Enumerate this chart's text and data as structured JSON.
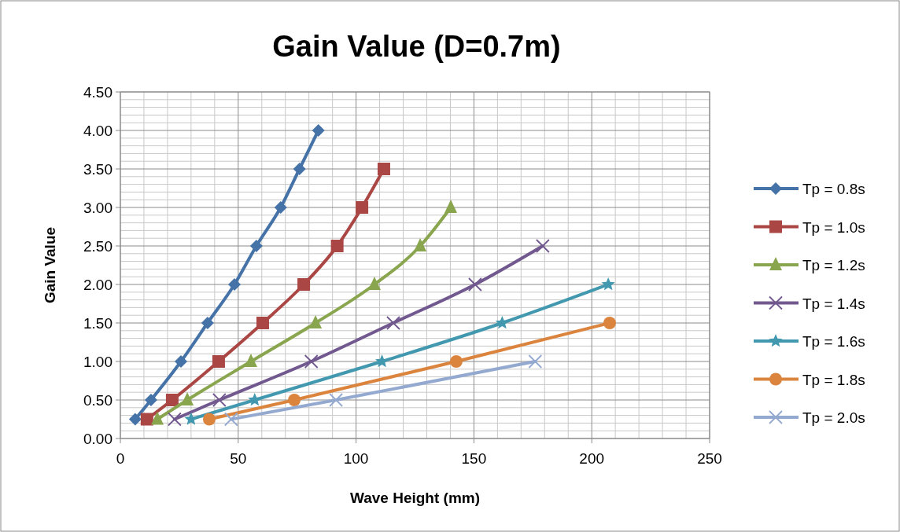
{
  "chart_data": {
    "type": "line",
    "title": "Gain Value (D=0.7m)",
    "xlabel": "Wave Height (mm)",
    "ylabel": "Gain Value",
    "xlim": [
      0,
      250
    ],
    "xticks": [
      0,
      50,
      100,
      150,
      200,
      250
    ],
    "ylim": [
      0,
      4.5
    ],
    "yticks": [
      {
        "value": 0,
        "label": "0.00"
      },
      {
        "value": 0.5,
        "label": "0.50"
      },
      {
        "value": 1,
        "label": "1.00"
      },
      {
        "value": 1.5,
        "label": "1.50"
      },
      {
        "value": 2,
        "label": "2.00"
      },
      {
        "value": 2.5,
        "label": "2.50"
      },
      {
        "value": 3,
        "label": "3.00"
      },
      {
        "value": 3.5,
        "label": "3.50"
      },
      {
        "value": 4,
        "label": "4.00"
      },
      {
        "value": 4.5,
        "label": "4.50"
      }
    ],
    "grid": true,
    "legend": "right",
    "series": [
      {
        "name": "Tp = 0.8s",
        "color": "#4572a7",
        "marker": "diamond",
        "x": [
          6.3,
          13,
          25.7,
          37,
          48.4,
          57.7,
          68,
          76,
          84
        ],
        "values": [
          0.25,
          0.5,
          1,
          1.5,
          2,
          2.5,
          3,
          3.5,
          4
        ]
      },
      {
        "name": "Tp = 1.0s",
        "color": "#aa4643",
        "marker": "square",
        "x": [
          11.3,
          22,
          41.7,
          60.4,
          77.8,
          92,
          102.5,
          111.8
        ],
        "values": [
          0.25,
          0.5,
          1,
          1.5,
          2,
          2.5,
          3,
          3.5
        ]
      },
      {
        "name": "Tp = 1.2s",
        "color": "#89a54e",
        "marker": "triangle",
        "x": [
          15.7,
          28.4,
          55.4,
          82.8,
          107.8,
          127.2,
          140.2
        ],
        "values": [
          0.25,
          0.5,
          1,
          1.5,
          2,
          2.5,
          3
        ]
      },
      {
        "name": "Tp = 1.4s",
        "color": "#71588f",
        "marker": "cross",
        "x": [
          23,
          42,
          81,
          115.8,
          150.5,
          179.2
        ],
        "values": [
          0.25,
          0.5,
          1,
          1.5,
          2,
          2.5
        ]
      },
      {
        "name": "Tp = 1.6s",
        "color": "#4198af",
        "marker": "star",
        "x": [
          30,
          57,
          111,
          162,
          207
        ],
        "values": [
          0.25,
          0.5,
          1,
          1.5,
          2
        ]
      },
      {
        "name": "Tp = 1.8s",
        "color": "#db843d",
        "marker": "circle",
        "x": [
          37.7,
          73.8,
          142.5,
          207.6
        ],
        "values": [
          0.25,
          0.5,
          1,
          1.5
        ]
      },
      {
        "name": "Tp = 2.0s",
        "color": "#93a9cf",
        "marker": "cross",
        "x": [
          47,
          91.5,
          176
        ],
        "values": [
          0.25,
          0.5,
          1
        ]
      }
    ]
  }
}
